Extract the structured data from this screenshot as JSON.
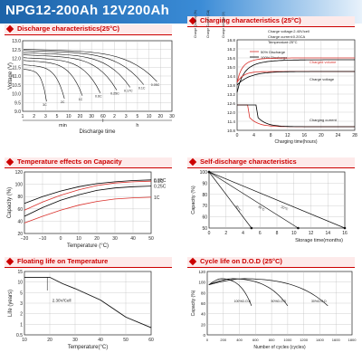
{
  "title": "NPG12-200Ah 12V200Ah",
  "chart_data": [
    {
      "id": "discharge",
      "header": "Discharge characteristics(25°C)",
      "type": "line",
      "ylabel": "Voltage (V)",
      "xlabel": "Discharge time",
      "y_ticks": [
        "13.0",
        "12.5",
        "12.0",
        "11.5",
        "11.0",
        "10.5",
        "10.0",
        "9.5",
        "9.0"
      ],
      "x_ticks": [
        "1",
        "2",
        "3",
        "5",
        "10",
        "20",
        "30",
        "60",
        "2",
        "3",
        "5",
        "10",
        "20",
        "30"
      ],
      "x_units": [
        "min",
        "h"
      ],
      "curve_labels": [
        "3C",
        "2C",
        "1C",
        "0.6C",
        "0.25C",
        "0.17C",
        "0.1C",
        "0.05C"
      ]
    },
    {
      "id": "charging",
      "header": "Charging characteristics (25°C)",
      "type": "line",
      "left_axes": [
        "Charge Quantity (%)",
        "Charge Current (CA)",
        "Charge Voltage (V)"
      ],
      "xlabel": "Charging time(hours)",
      "notes": [
        "Charge voltage:2.40V/cell",
        "Charge current:0.20CA",
        "Temperature:25°C"
      ],
      "legend": [
        "50% Discharge",
        "100% Discharge"
      ],
      "labels": [
        "Charged volume",
        "Charge voltage",
        "Charging current"
      ],
      "x_ticks": [
        "0",
        "4",
        "8",
        "12",
        "16",
        "20",
        "24",
        "28"
      ],
      "volt_ticks": [
        "16.8",
        "16.2",
        "15.6",
        "15.0",
        "14.4",
        "13.8",
        "13.2",
        "12.6",
        "12.0",
        "11.4",
        "10.8"
      ]
    },
    {
      "id": "temperature",
      "header": "Temperature effects on Capacity",
      "type": "line",
      "ylabel": "Capacity (%)",
      "xlabel": "Temperature (°C)",
      "x": [
        -20,
        -10,
        0,
        10,
        20,
        30,
        40,
        50
      ],
      "x_ticks": [
        "−20",
        "−10",
        "0",
        "10",
        "20",
        "30",
        "40",
        "50"
      ],
      "y_ticks": [
        "120",
        "100",
        "80",
        "60",
        "40",
        "20"
      ],
      "ylim": [
        20,
        120
      ],
      "series": [
        {
          "name": "0.05C",
          "values": [
            69,
            80,
            89,
            96,
            101,
            104,
            106,
            107
          ],
          "color": "#000000"
        },
        {
          "name": "0.1C",
          "values": [
            58,
            71,
            82,
            91,
            98,
            102,
            104,
            105
          ],
          "color": "#d9302b"
        },
        {
          "name": "0.25C",
          "values": [
            48,
            62,
            74,
            83,
            90,
            94,
            96,
            97
          ],
          "color": "#000000"
        },
        {
          "name": "1C",
          "values": [
            37,
            48,
            58,
            66,
            72,
            76,
            78,
            79
          ],
          "color": "#d9302b"
        }
      ]
    },
    {
      "id": "selfdischarge",
      "header": "Self-discharge characteristics",
      "type": "line",
      "ylabel": "Capacity (%)",
      "xlabel": "Storage time(months)",
      "x_ticks": [
        "0",
        "2",
        "4",
        "6",
        "8",
        "10",
        "12",
        "14",
        "16"
      ],
      "y_ticks": [
        "100",
        "90",
        "80",
        "70",
        "60",
        "50"
      ],
      "series": [
        {
          "name": "40°C",
          "x": [
            0,
            5
          ],
          "values": [
            100,
            50
          ]
        },
        {
          "name": "30°C",
          "x": [
            0,
            10.5
          ],
          "values": [
            100,
            50
          ]
        },
        {
          "name": "20°C",
          "x": [
            0,
            16
          ],
          "values": [
            100,
            50
          ]
        }
      ]
    },
    {
      "id": "floating",
      "header": "Floating life on Temperature",
      "type": "line",
      "ylabel": "Life (years)",
      "xlabel": "Temperature(°C)",
      "annotation": "2.30V/Cell",
      "x_ticks": [
        "10",
        "20",
        "30",
        "40",
        "50",
        "60"
      ],
      "y_ticks": [
        "15",
        "10",
        "5",
        "3",
        "2",
        "1",
        "0.5"
      ],
      "series": [
        {
          "name": "2.30V/Cell",
          "x": [
            10,
            20,
            25,
            30,
            40,
            50,
            60
          ],
          "values": [
            12,
            12,
            9,
            6.5,
            3.5,
            1.6,
            0.8
          ]
        }
      ]
    },
    {
      "id": "cyclelife",
      "header": "Cycle life on D.O.D (25°C)",
      "type": "line",
      "ylabel": "Capacity (%)",
      "xlabel": "Number of cycles (cycles)",
      "x_ticks": [
        "0",
        "200",
        "400",
        "600",
        "800",
        "1000",
        "1200",
        "1400",
        "1600",
        "1800"
      ],
      "y_ticks": [
        "120",
        "100",
        "80",
        "60",
        "40",
        "20",
        "0"
      ],
      "labels": [
        "100%D.O.D",
        "50%D.O.D",
        "30%D.O.D"
      ]
    }
  ]
}
